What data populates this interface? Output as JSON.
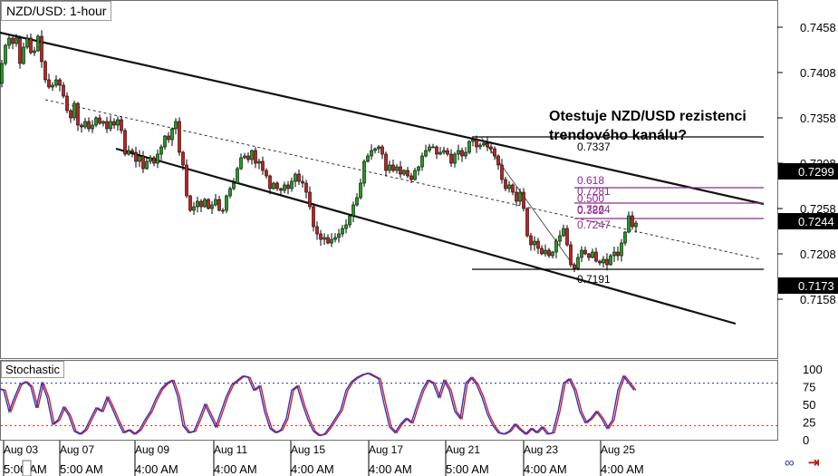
{
  "chart_title": "NZD/USD: 1-hour",
  "annotation": {
    "line1": "Otestuje NZD/USD rezistenci",
    "line2": "trendového kanálu?"
  },
  "indicator_label": "Stochastic",
  "chart_data": {
    "type": "candlestick",
    "symbol": "NZD/USD",
    "timeframe": "1-hour",
    "y_range": [
      0.713,
      0.7478
    ],
    "y_ticks": [
      "0.7458",
      "0.7408",
      "0.7358",
      "0.7308",
      "0.7258",
      "0.7208",
      "0.7158"
    ],
    "price_tags": [
      {
        "label": "0.7299",
        "value": 0.7299
      },
      {
        "label": "0.7244",
        "value": 0.7244
      },
      {
        "label": "0.7173",
        "value": 0.7173
      }
    ],
    "x_labels": [
      {
        "day": "Aug 03",
        "time": "5:00 AM"
      },
      {
        "day": "Aug 07",
        "time": "5:00 AM"
      },
      {
        "day": "Aug 09",
        "time": "4:00 AM"
      },
      {
        "day": "Aug 11",
        "time": "4:00 AM"
      },
      {
        "day": "Aug 15",
        "time": "4:00 AM"
      },
      {
        "day": "Aug 17",
        "time": "4:00 AM"
      },
      {
        "day": "Aug 21",
        "time": "5:00 AM"
      },
      {
        "day": "Aug 23",
        "time": "4:00 AM"
      },
      {
        "day": "Aug 25",
        "time": "4:00 AM"
      }
    ],
    "price_path": [
      [
        0,
        0.7396
      ],
      [
        4,
        0.7418
      ],
      [
        8,
        0.7438
      ],
      [
        12,
        0.7446
      ],
      [
        16,
        0.744
      ],
      [
        20,
        0.7446
      ],
      [
        24,
        0.7418
      ],
      [
        28,
        0.7436
      ],
      [
        32,
        0.7446
      ],
      [
        36,
        0.743
      ],
      [
        40,
        0.7432
      ],
      [
        44,
        0.7448
      ],
      [
        48,
        0.742
      ],
      [
        52,
        0.74
      ],
      [
        56,
        0.7392
      ],
      [
        60,
        0.7394
      ],
      [
        64,
        0.74
      ],
      [
        68,
        0.7394
      ],
      [
        72,
        0.7382
      ],
      [
        76,
        0.7366
      ],
      [
        80,
        0.7358
      ],
      [
        84,
        0.7374
      ],
      [
        88,
        0.735
      ],
      [
        92,
        0.7348
      ],
      [
        96,
        0.7354
      ],
      [
        100,
        0.7346
      ],
      [
        104,
        0.735
      ],
      [
        108,
        0.7358
      ],
      [
        112,
        0.7352
      ],
      [
        116,
        0.7354
      ],
      [
        120,
        0.7346
      ],
      [
        124,
        0.7354
      ],
      [
        128,
        0.735
      ],
      [
        132,
        0.7356
      ],
      [
        136,
        0.7344
      ],
      [
        140,
        0.7318
      ],
      [
        144,
        0.7322
      ],
      [
        148,
        0.732
      ],
      [
        152,
        0.731
      ],
      [
        156,
        0.7316
      ],
      [
        160,
        0.7302
      ],
      [
        164,
        0.731
      ],
      [
        168,
        0.7314
      ],
      [
        172,
        0.7308
      ],
      [
        176,
        0.7318
      ],
      [
        180,
        0.7326
      ],
      [
        184,
        0.7338
      ],
      [
        188,
        0.7334
      ],
      [
        192,
        0.7346
      ],
      [
        196,
        0.7354
      ],
      [
        200,
        0.732
      ],
      [
        204,
        0.7306
      ],
      [
        208,
        0.7272
      ],
      [
        212,
        0.7256
      ],
      [
        216,
        0.726
      ],
      [
        220,
        0.7266
      ],
      [
        224,
        0.726
      ],
      [
        228,
        0.7268
      ],
      [
        232,
        0.7258
      ],
      [
        236,
        0.7262
      ],
      [
        240,
        0.7268
      ],
      [
        244,
        0.7256
      ],
      [
        248,
        0.7256
      ],
      [
        252,
        0.7272
      ],
      [
        256,
        0.728
      ],
      [
        260,
        0.7286
      ],
      [
        264,
        0.7302
      ],
      [
        268,
        0.7314
      ],
      [
        272,
        0.7316
      ],
      [
        276,
        0.7312
      ],
      [
        280,
        0.7322
      ],
      [
        284,
        0.7308
      ],
      [
        288,
        0.731
      ],
      [
        292,
        0.73
      ],
      [
        296,
        0.7294
      ],
      [
        300,
        0.728
      ],
      [
        304,
        0.7286
      ],
      [
        308,
        0.728
      ],
      [
        312,
        0.7278
      ],
      [
        316,
        0.7284
      ],
      [
        320,
        0.728
      ],
      [
        324,
        0.7288
      ],
      [
        328,
        0.7296
      ],
      [
        332,
        0.7288
      ],
      [
        336,
        0.7286
      ],
      [
        340,
        0.7276
      ],
      [
        344,
        0.726
      ],
      [
        348,
        0.7238
      ],
      [
        352,
        0.723
      ],
      [
        356,
        0.7224
      ],
      [
        360,
        0.7226
      ],
      [
        364,
        0.722
      ],
      [
        368,
        0.7224
      ],
      [
        372,
        0.7226
      ],
      [
        376,
        0.723
      ],
      [
        380,
        0.7236
      ],
      [
        384,
        0.724
      ],
      [
        388,
        0.725
      ],
      [
        392,
        0.7262
      ],
      [
        396,
        0.727
      ],
      [
        400,
        0.7286
      ],
      [
        404,
        0.731
      ],
      [
        408,
        0.7316
      ],
      [
        412,
        0.7322
      ],
      [
        416,
        0.7324
      ],
      [
        420,
        0.7326
      ],
      [
        424,
        0.7318
      ],
      [
        428,
        0.73
      ],
      [
        432,
        0.7306
      ],
      [
        436,
        0.73
      ],
      [
        440,
        0.7304
      ],
      [
        444,
        0.7296
      ],
      [
        448,
        0.73
      ],
      [
        452,
        0.7294
      ],
      [
        456,
        0.729
      ],
      [
        460,
        0.73
      ],
      [
        464,
        0.7304
      ],
      [
        468,
        0.7316
      ],
      [
        472,
        0.7322
      ],
      [
        476,
        0.7326
      ],
      [
        480,
        0.7326
      ],
      [
        484,
        0.7318
      ],
      [
        488,
        0.732
      ],
      [
        492,
        0.7322
      ],
      [
        496,
        0.7318
      ],
      [
        500,
        0.7308
      ],
      [
        504,
        0.7318
      ],
      [
        508,
        0.7322
      ],
      [
        512,
        0.7316
      ],
      [
        516,
        0.732
      ],
      [
        520,
        0.7332
      ],
      [
        524,
        0.7334
      ],
      [
        528,
        0.7326
      ],
      [
        532,
        0.7328
      ],
      [
        536,
        0.733
      ],
      [
        540,
        0.7326
      ],
      [
        544,
        0.7324
      ],
      [
        548,
        0.7316
      ],
      [
        552,
        0.7306
      ],
      [
        556,
        0.729
      ],
      [
        560,
        0.728
      ],
      [
        564,
        0.7284
      ],
      [
        568,
        0.7276
      ],
      [
        572,
        0.7266
      ],
      [
        576,
        0.7276
      ],
      [
        580,
        0.7258
      ],
      [
        584,
        0.7228
      ],
      [
        588,
        0.7218
      ],
      [
        592,
        0.7222
      ],
      [
        596,
        0.7214
      ],
      [
        600,
        0.7208
      ],
      [
        604,
        0.7212
      ],
      [
        608,
        0.7206
      ],
      [
        612,
        0.721
      ],
      [
        616,
        0.7222
      ],
      [
        620,
        0.7228
      ],
      [
        624,
        0.7236
      ],
      [
        628,
        0.7218
      ],
      [
        632,
        0.7196
      ],
      [
        636,
        0.7192
      ],
      [
        640,
        0.7204
      ],
      [
        644,
        0.7212
      ],
      [
        648,
        0.7208
      ],
      [
        652,
        0.7204
      ],
      [
        656,
        0.721
      ],
      [
        660,
        0.72
      ],
      [
        664,
        0.7198
      ],
      [
        668,
        0.7202
      ],
      [
        672,
        0.7196
      ],
      [
        676,
        0.7206
      ],
      [
        680,
        0.721
      ],
      [
        684,
        0.7206
      ],
      [
        688,
        0.722
      ],
      [
        692,
        0.7232
      ],
      [
        696,
        0.725
      ],
      [
        700,
        0.7238
      ],
      [
        704,
        0.7242
      ]
    ],
    "channel": {
      "upper": {
        "from": [
          0,
          0.7452
        ],
        "to": [
          843,
          0.7263
        ]
      },
      "lower": {
        "from": [
          128,
          0.7324
        ],
        "to": [
          812,
          0.7131
        ]
      },
      "mid": {
        "from": [
          50,
          0.7378
        ],
        "to": [
          840,
          0.7202
        ]
      }
    },
    "fibonacci": {
      "high_label": "0.7337",
      "high": 0.7337,
      "low_label": "0.7191",
      "low": 0.7191,
      "levels": [
        {
          "ratio": "0.618",
          "value": 0.7281
        },
        {
          "ratio": "0.500",
          "value": 0.7264
        },
        {
          "ratio": "0.382",
          "value": 0.7247
        }
      ],
      "level_labels": [
        "0.618",
        "0.7281",
        "0.500",
        "0.7264",
        "0.382",
        "0.7247"
      ]
    },
    "stochastic": {
      "y_range": [
        0,
        100
      ],
      "y_ticks": [
        "100",
        "75",
        "50",
        "25",
        "0"
      ],
      "overbought": 80,
      "oversold": 20,
      "k": [
        [
          0,
          72
        ],
        [
          6,
          70
        ],
        [
          12,
          40
        ],
        [
          18,
          60
        ],
        [
          24,
          78
        ],
        [
          30,
          82
        ],
        [
          36,
          75
        ],
        [
          42,
          45
        ],
        [
          48,
          80
        ],
        [
          54,
          60
        ],
        [
          60,
          22
        ],
        [
          66,
          28
        ],
        [
          72,
          46
        ],
        [
          78,
          34
        ],
        [
          84,
          12
        ],
        [
          90,
          8
        ],
        [
          96,
          14
        ],
        [
          102,
          30
        ],
        [
          108,
          45
        ],
        [
          114,
          40
        ],
        [
          120,
          60
        ],
        [
          126,
          44
        ],
        [
          132,
          26
        ],
        [
          138,
          10
        ],
        [
          144,
          14
        ],
        [
          150,
          8
        ],
        [
          156,
          14
        ],
        [
          162,
          28
        ],
        [
          168,
          40
        ],
        [
          174,
          58
        ],
        [
          180,
          72
        ],
        [
          186,
          80
        ],
        [
          192,
          84
        ],
        [
          198,
          62
        ],
        [
          204,
          20
        ],
        [
          210,
          10
        ],
        [
          216,
          12
        ],
        [
          222,
          30
        ],
        [
          228,
          50
        ],
        [
          234,
          34
        ],
        [
          240,
          18
        ],
        [
          246,
          40
        ],
        [
          252,
          62
        ],
        [
          258,
          78
        ],
        [
          264,
          84
        ],
        [
          270,
          90
        ],
        [
          276,
          88
        ],
        [
          282,
          70
        ],
        [
          288,
          76
        ],
        [
          294,
          40
        ],
        [
          300,
          16
        ],
        [
          306,
          10
        ],
        [
          312,
          14
        ],
        [
          318,
          30
        ],
        [
          324,
          70
        ],
        [
          330,
          76
        ],
        [
          336,
          50
        ],
        [
          342,
          28
        ],
        [
          348,
          12
        ],
        [
          354,
          6
        ],
        [
          360,
          8
        ],
        [
          366,
          18
        ],
        [
          372,
          30
        ],
        [
          378,
          42
        ],
        [
          384,
          70
        ],
        [
          390,
          82
        ],
        [
          396,
          88
        ],
        [
          402,
          92
        ],
        [
          408,
          94
        ],
        [
          414,
          90
        ],
        [
          420,
          86
        ],
        [
          426,
          50
        ],
        [
          432,
          18
        ],
        [
          438,
          10
        ],
        [
          444,
          22
        ],
        [
          450,
          30
        ],
        [
          456,
          24
        ],
        [
          462,
          48
        ],
        [
          468,
          70
        ],
        [
          474,
          84
        ],
        [
          480,
          80
        ],
        [
          486,
          60
        ],
        [
          492,
          84
        ],
        [
          498,
          70
        ],
        [
          504,
          40
        ],
        [
          510,
          30
        ],
        [
          516,
          80
        ],
        [
          522,
          88
        ],
        [
          528,
          78
        ],
        [
          534,
          60
        ],
        [
          540,
          36
        ],
        [
          546,
          20
        ],
        [
          552,
          10
        ],
        [
          558,
          8
        ],
        [
          564,
          12
        ],
        [
          570,
          22
        ],
        [
          576,
          14
        ],
        [
          582,
          8
        ],
        [
          588,
          16
        ],
        [
          594,
          10
        ],
        [
          600,
          18
        ],
        [
          606,
          8
        ],
        [
          612,
          10
        ],
        [
          618,
          40
        ],
        [
          624,
          80
        ],
        [
          630,
          86
        ],
        [
          636,
          70
        ],
        [
          642,
          40
        ],
        [
          648,
          24
        ],
        [
          654,
          30
        ],
        [
          660,
          40
        ],
        [
          666,
          30
        ],
        [
          672,
          16
        ],
        [
          678,
          28
        ],
        [
          684,
          70
        ],
        [
          690,
          90
        ],
        [
          696,
          80
        ],
        [
          702,
          70
        ]
      ]
    }
  }
}
